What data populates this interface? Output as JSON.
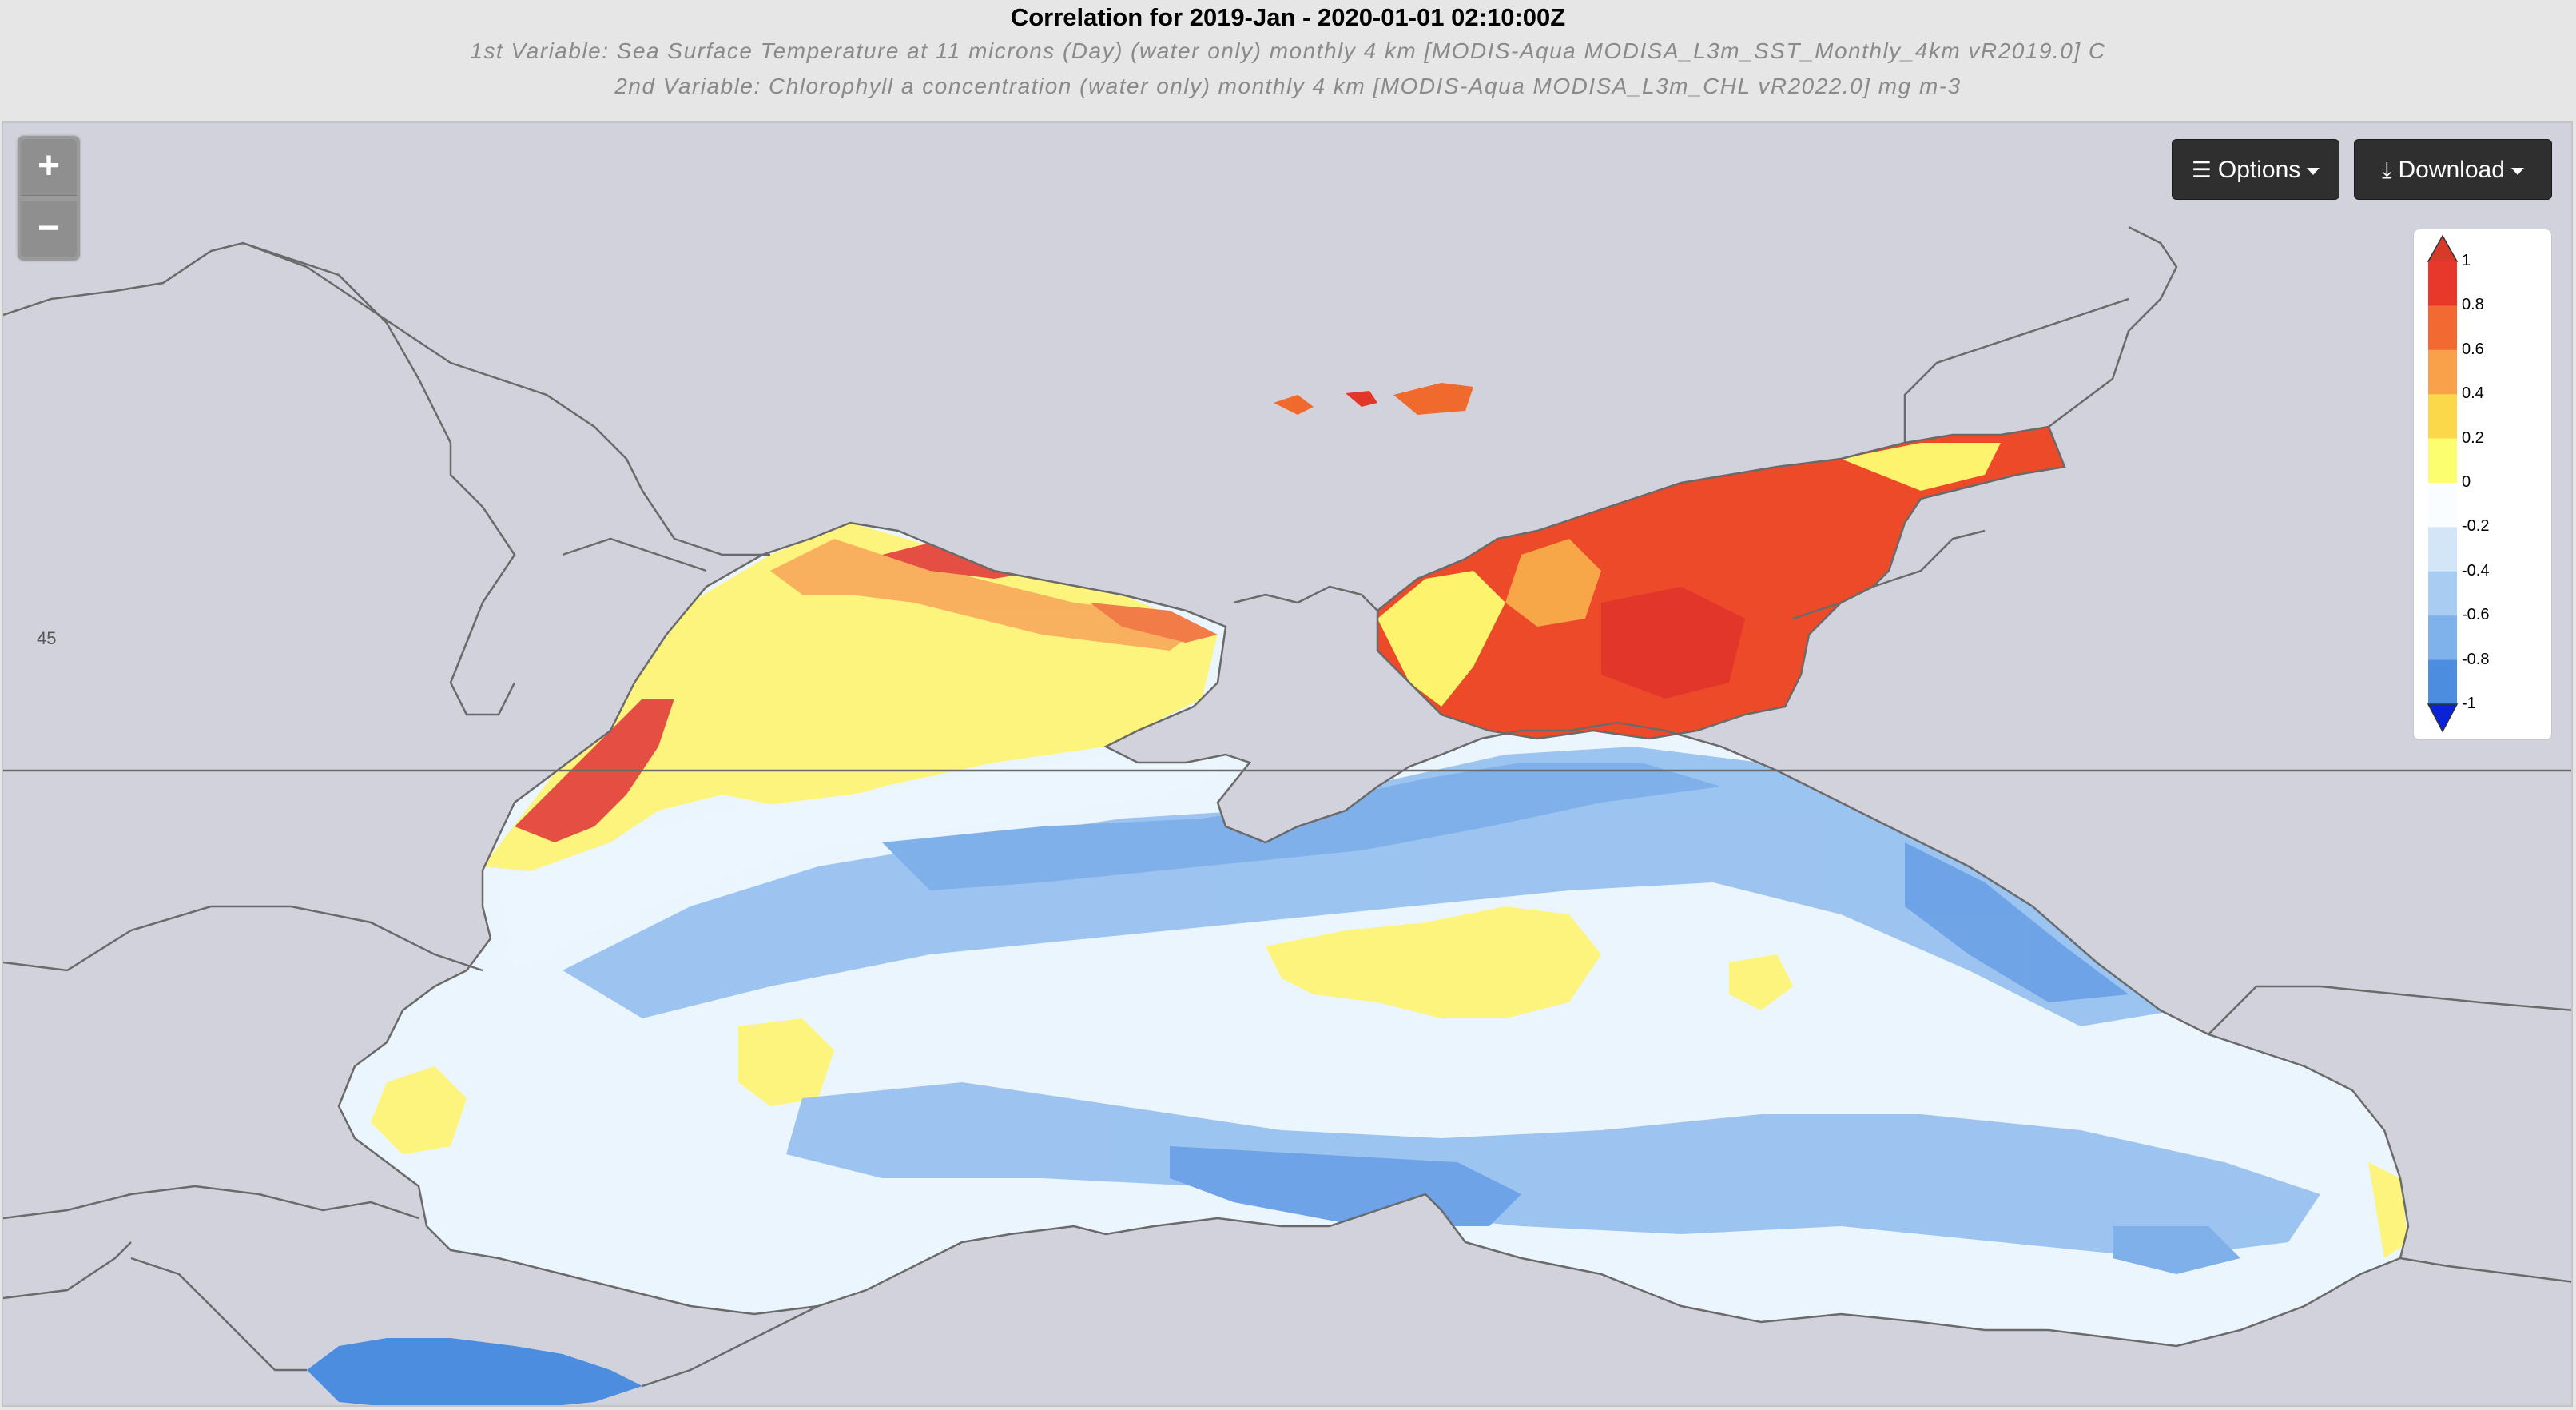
{
  "header": {
    "title": "Correlation for 2019-Jan - 2020-01-01 02:10:00Z",
    "subtitle1": "1st Variable: Sea Surface Temperature at 11 microns (Day) (water only) monthly 4 km [MODIS-Aqua MODISA_L3m_SST_Monthly_4km vR2019.0] C",
    "subtitle2": "2nd Variable: Chlorophyll a concentration (water only) monthly 4 km [MODIS-Aqua MODISA_L3m_CHL vR2022.0] mg m-3"
  },
  "zoom": {
    "in_label": "+",
    "out_label": "−"
  },
  "toolbar": {
    "options_label": "Options",
    "download_label": "Download",
    "options_icon": "bars-icon",
    "download_icon": "download-icon"
  },
  "map": {
    "lat_label": "45"
  },
  "legend": {
    "labels": [
      "1",
      "0.8",
      "0.6",
      "0.4",
      "0.2",
      "0",
      "-0.2",
      "-0.4",
      "-0.6",
      "-0.8",
      "-1"
    ],
    "colors": [
      "#e8372b",
      "#f26a32",
      "#f8a04a",
      "#fbd84a",
      "#fdfd70",
      "#fafdff",
      "#d3e6f8",
      "#a9cdf2",
      "#7fb2ea",
      "#4d8de0",
      "#1a5fe0"
    ],
    "over_color": "#d83a2a",
    "under_color": "#0a22d8"
  },
  "colors": {
    "land": "#d2d2dc",
    "border_line": "#6a6a6a",
    "sea_light": "#e6f2fc",
    "sea_blue": "#8fbcef",
    "sea_deep": "#5b98e4",
    "yellow": "#fdf26a",
    "orange": "#f06a2e",
    "red": "#e2362a"
  }
}
